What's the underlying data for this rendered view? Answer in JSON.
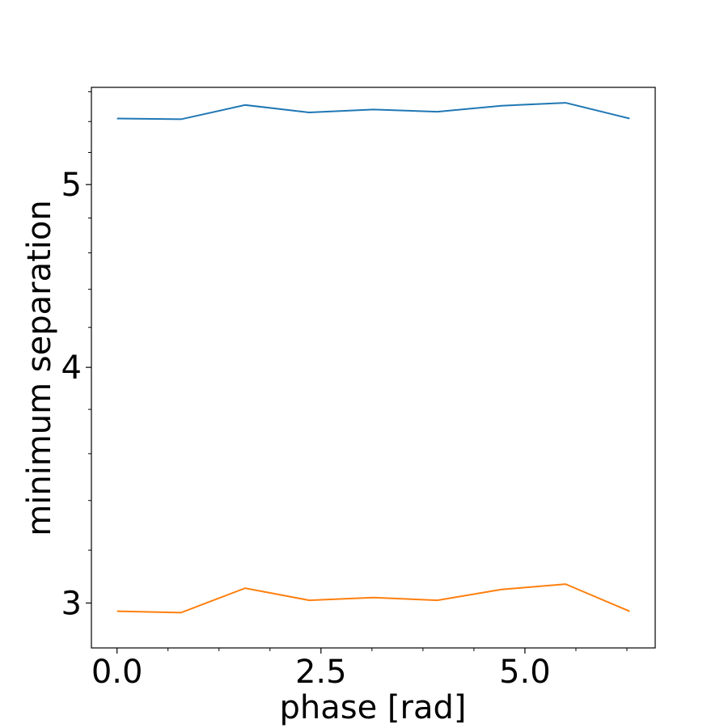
{
  "chart_data": {
    "type": "line",
    "title": "",
    "xlabel": "phase [rad]",
    "ylabel": "minimum separation",
    "xlim": [
      -0.314,
      6.597
    ],
    "ylim": [
      2.84,
      5.63
    ],
    "yscale": "log",
    "xticks": [
      {
        "value": 0.0,
        "label": "0.0"
      },
      {
        "value": 2.5,
        "label": "2.5"
      },
      {
        "value": 5.0,
        "label": "5.0"
      }
    ],
    "x_minor_ticks": [
      0.625,
      1.25,
      1.875,
      3.125,
      3.75,
      4.375,
      5.625,
      6.25
    ],
    "yticks": [
      {
        "value": 3,
        "label": "3"
      },
      {
        "value": 4,
        "label": "4"
      },
      {
        "value": 5,
        "label": "5"
      }
    ],
    "y_minor_ticks": [
      3.2,
      3.4,
      3.6,
      3.8,
      4.2,
      4.4,
      4.6,
      4.8,
      5.2,
      5.4,
      5.6
    ],
    "grid": false,
    "legend": "none",
    "x": [
      0.0,
      0.785,
      1.571,
      2.356,
      3.142,
      3.927,
      4.712,
      5.498,
      6.283
    ],
    "series": [
      {
        "color": "#1f77b4",
        "values": [
          5.42,
          5.415,
          5.51,
          5.46,
          5.48,
          5.465,
          5.505,
          5.525,
          5.42
        ]
      },
      {
        "color": "#ff7f0e",
        "values": [
          2.97,
          2.965,
          3.055,
          3.01,
          3.02,
          3.01,
          3.05,
          3.07,
          2.97
        ]
      }
    ]
  }
}
